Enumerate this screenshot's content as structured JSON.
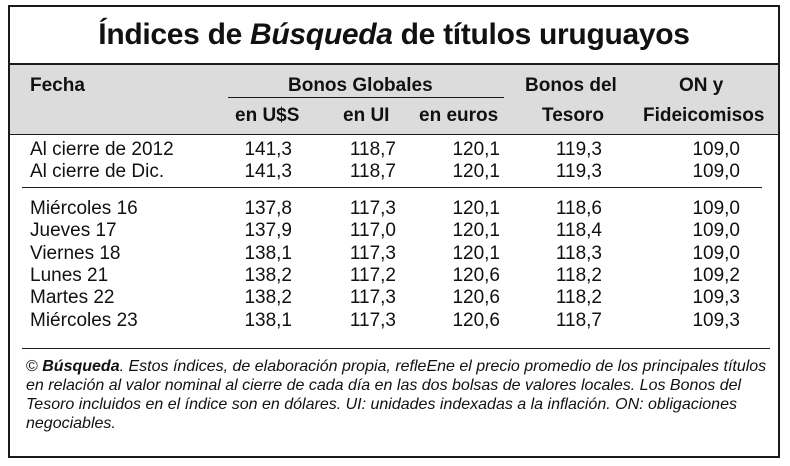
{
  "title": {
    "part1": "Índices de",
    "part2": "Búsqueda",
    "part3": "de títulos uruguayos"
  },
  "header": {
    "fecha": "Fecha",
    "bonos_globales": "Bonos Globales",
    "usd": "en U$S",
    "ui": "en UI",
    "euros": "en euros",
    "tesoro_1": "Bonos del",
    "tesoro_2": "Tesoro",
    "on_1": "ON y",
    "on_2": "Fideicomisos"
  },
  "rows_a": [
    {
      "fecha": "Al cierre de 2012",
      "usd": "141,3",
      "ui": "118,7",
      "euros": "120,1",
      "tesoro": "119,3",
      "on": "109,0"
    },
    {
      "fecha": "Al cierre de Dic.",
      "usd": "141,3",
      "ui": "118,7",
      "euros": "120,1",
      "tesoro": "119,3",
      "on": "109,0"
    }
  ],
  "rows_b": [
    {
      "fecha": "Miércoles 16",
      "usd": "137,8",
      "ui": "117,3",
      "euros": "120,1",
      "tesoro": "118,6",
      "on": "109,0"
    },
    {
      "fecha": "Jueves 17",
      "usd": "137,9",
      "ui": "117,0",
      "euros": "120,1",
      "tesoro": "118,4",
      "on": "109,0"
    },
    {
      "fecha": "Viernes 18",
      "usd": "138,1",
      "ui": "117,3",
      "euros": "120,1",
      "tesoro": "118,3",
      "on": "109,0"
    },
    {
      "fecha": "Lunes 21",
      "usd": "138,2",
      "ui": "117,2",
      "euros": "120,6",
      "tesoro": "118,2",
      "on": "109,2"
    },
    {
      "fecha": "Martes 22",
      "usd": "138,2",
      "ui": "117,3",
      "euros": "120,6",
      "tesoro": "118,2",
      "on": "109,3"
    },
    {
      "fecha": "Miércoles 23",
      "usd": "138,1",
      "ui": "117,3",
      "euros": "120,6",
      "tesoro": "118,7",
      "on": "109,3"
    }
  ],
  "footnote": {
    "copyright": "©",
    "brand": "Búsqueda",
    "text": ". Estos índices, de elaboración propia, refleEne el precio promedio de los principales títulos en relación al valor nominal al cierre de cada día en las dos bolsas de valores locales. Los Bonos del Tesoro incluidos en el índice son en dólares. UI: unidades indexadas a la inflación. ON: obligaciones negociables."
  }
}
